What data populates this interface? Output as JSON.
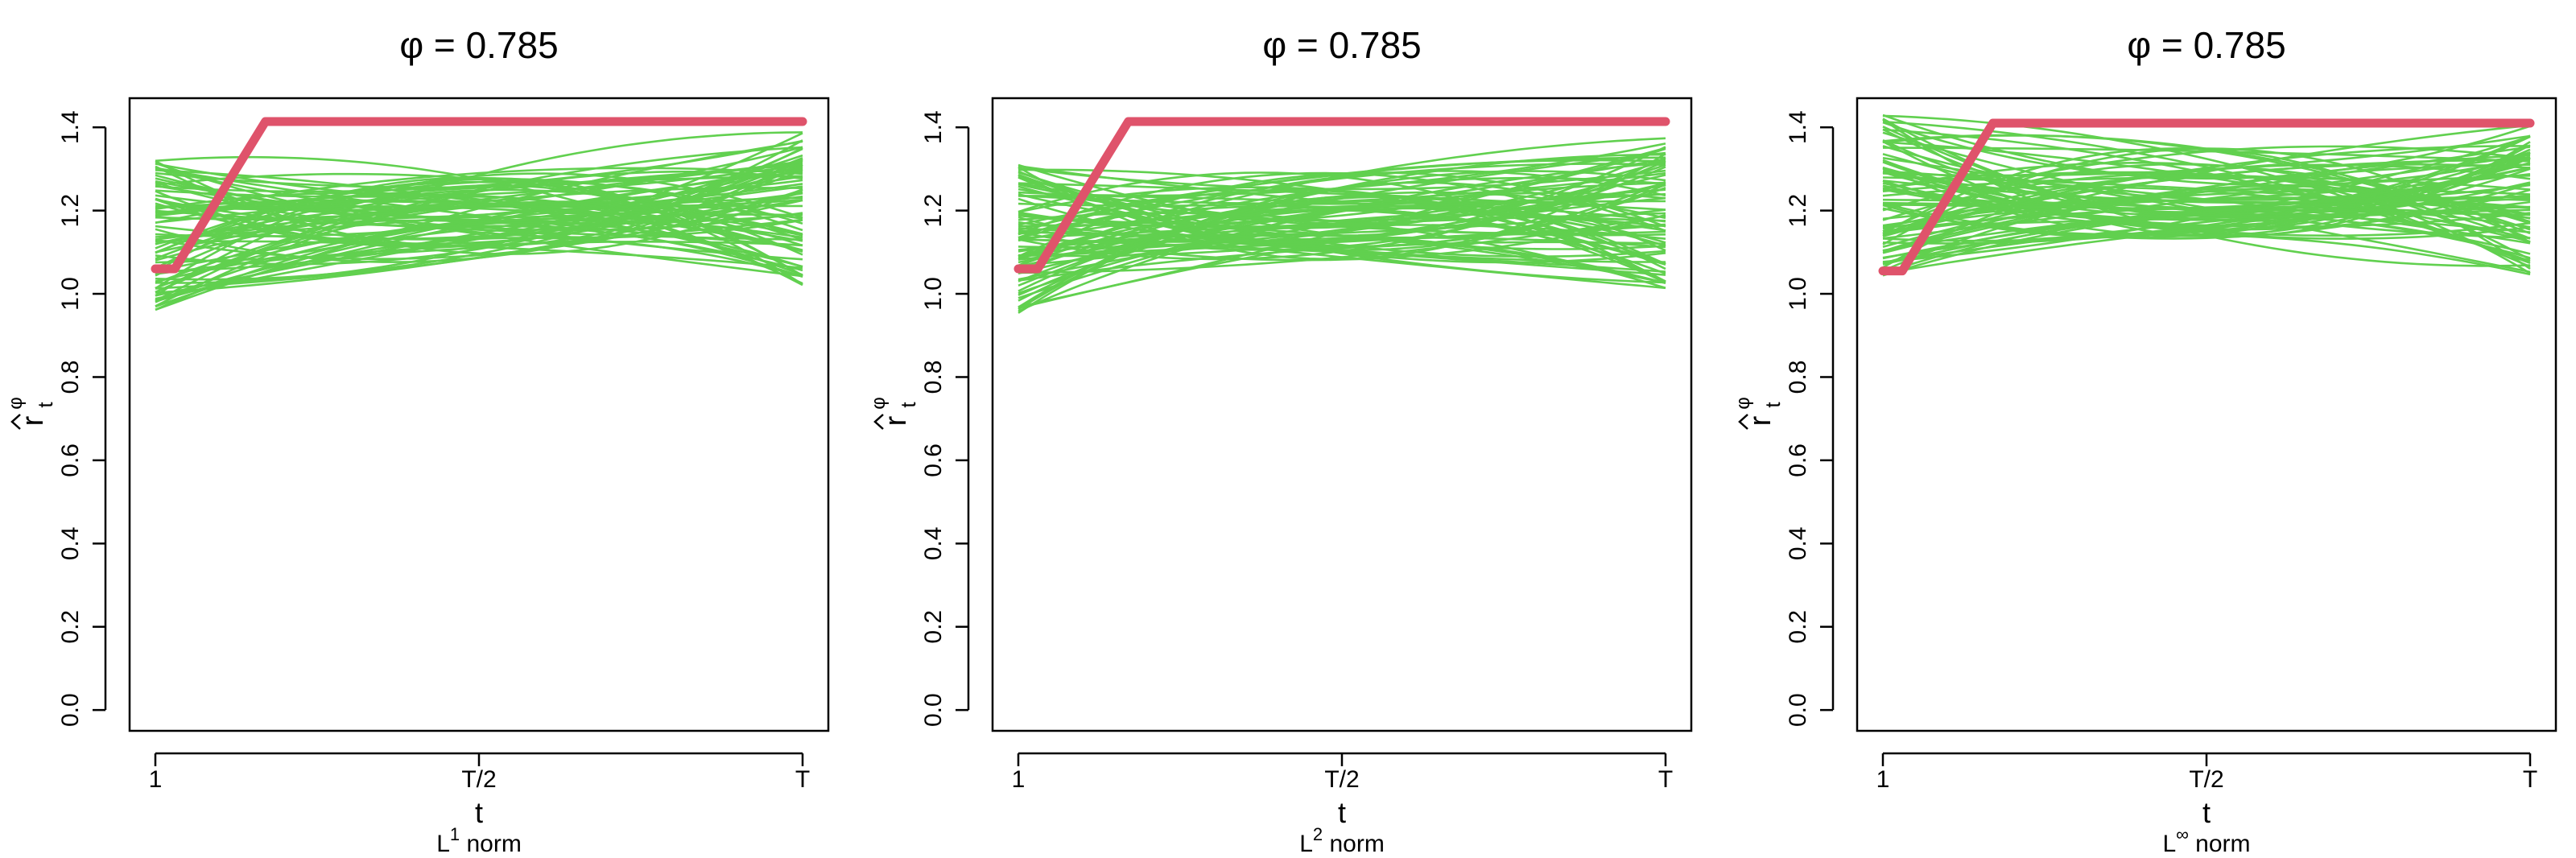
{
  "chart_data": [
    {
      "type": "line",
      "panel": "left",
      "title": "φ = 0.785",
      "xlabel": "t",
      "ylabel_main": "r",
      "ylabel_sub": "t",
      "ylabel_sup": "φ",
      "caption_base": "L",
      "caption_sup": "1",
      "caption_rest": " norm",
      "x_ticks": [
        "1",
        "T/2",
        "T"
      ],
      "y_ticks": [
        "0.0",
        "0.2",
        "0.4",
        "0.6",
        "0.8",
        "1.0",
        "1.2",
        "1.4"
      ],
      "ylim": [
        -0.05,
        1.47
      ],
      "grid": false,
      "legend": "none",
      "simulated_series": {
        "color": "#61D04F",
        "count": 80,
        "description_points": [
          "start",
          "middle",
          "end"
        ],
        "start_range": [
          0.96,
          1.32
        ],
        "middle_range": [
          1.08,
          1.29
        ],
        "end_range": [
          1.02,
          1.39
        ]
      },
      "highlight_series": {
        "color": "#DF536B",
        "x": [
          0.0,
          0.03,
          0.17,
          1.0
        ],
        "values": [
          1.06,
          1.06,
          1.414,
          1.414
        ]
      }
    },
    {
      "type": "line",
      "panel": "middle",
      "title": "φ = 0.785",
      "xlabel": "t",
      "ylabel_main": "r",
      "ylabel_sub": "t",
      "ylabel_sup": "φ",
      "caption_base": "L",
      "caption_sup": "2",
      "caption_rest": " norm",
      "x_ticks": [
        "1",
        "T/2",
        "T"
      ],
      "y_ticks": [
        "0.0",
        "0.2",
        "0.4",
        "0.6",
        "0.8",
        "1.0",
        "1.2",
        "1.4"
      ],
      "ylim": [
        -0.05,
        1.47
      ],
      "grid": false,
      "legend": "none",
      "simulated_series": {
        "color": "#61D04F",
        "count": 80,
        "description_points": [
          "start",
          "middle",
          "end"
        ],
        "start_range": [
          0.95,
          1.31
        ],
        "middle_range": [
          1.08,
          1.29
        ],
        "end_range": [
          1.01,
          1.38
        ]
      },
      "highlight_series": {
        "color": "#DF536B",
        "x": [
          0.0,
          0.03,
          0.17,
          1.0
        ],
        "values": [
          1.06,
          1.06,
          1.414,
          1.414
        ]
      }
    },
    {
      "type": "line",
      "panel": "right",
      "title": "φ = 0.785",
      "xlabel": "t",
      "ylabel_main": "r",
      "ylabel_sub": "t",
      "ylabel_sup": "φ",
      "caption_base": "L",
      "caption_sup": "∞",
      "caption_rest": " norm",
      "x_ticks": [
        "1",
        "T/2",
        "T"
      ],
      "y_ticks": [
        "0.0",
        "0.2",
        "0.4",
        "0.6",
        "0.8",
        "1.0",
        "1.2",
        "1.4"
      ],
      "ylim": [
        -0.05,
        1.47
      ],
      "grid": false,
      "legend": "none",
      "simulated_series": {
        "color": "#61D04F",
        "count": 80,
        "description_points": [
          "start",
          "middle",
          "end"
        ],
        "start_range": [
          1.03,
          1.43
        ],
        "middle_range": [
          1.13,
          1.35
        ],
        "end_range": [
          1.04,
          1.41
        ]
      },
      "highlight_series": {
        "color": "#DF536B",
        "x": [
          0.0,
          0.03,
          0.17,
          1.0
        ],
        "values": [
          1.055,
          1.055,
          1.41,
          1.41
        ]
      }
    }
  ]
}
